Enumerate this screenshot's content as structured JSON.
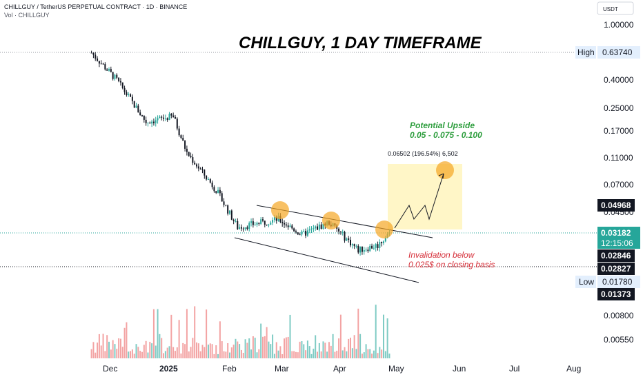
{
  "header": {
    "symbol_line": "CHILLGUY / TetherUS PERPETUAL CONTRACT · 1D · BINANCE",
    "volume_line": "Vol · CHILLGUY"
  },
  "currency_button": "USDT",
  "annotations": {
    "title": "CHILLGUY, 1 DAY TIMEFRAME",
    "upside_line1": "Potential Upside",
    "upside_line2": "0.05 - 0.075 - 0.100",
    "measure": "0.06502 (196.54%) 6,502",
    "invalidation_line1": "Invalidation below",
    "invalidation_line2": "0.025$ on closing basis"
  },
  "colors": {
    "up": "#26a69a",
    "down": "#131722",
    "vol_up": "#7fcbc4",
    "vol_down": "#f3a3a3",
    "highlight_circle": "#f5a623",
    "target_box": "#fff6c7",
    "last_price_badge": "#26a69a"
  },
  "chart_data": {
    "type": "candlestick",
    "title": "CHILLGUY, 1 DAY TIMEFRAME",
    "x_ticks": [
      "Dec",
      "2025",
      "Feb",
      "Mar",
      "Apr",
      "May",
      "Jun",
      "Jul",
      "Aug"
    ],
    "y_scale": "log",
    "y_ticks": [
      "1.00000",
      "0.40000",
      "0.25000",
      "0.17000",
      "0.11000",
      "0.07000",
      "0.04500",
      "0.00800",
      "0.00550"
    ],
    "price_badges": [
      {
        "label": "",
        "value": "0.04968",
        "kind": "dark"
      },
      {
        "label": "",
        "value": "0.03182",
        "sub": "12:15:06",
        "kind": "last"
      },
      {
        "label": "",
        "value": "0.02846",
        "kind": "dark"
      },
      {
        "label": "",
        "value": "0.02827",
        "kind": "dark"
      },
      {
        "label": "",
        "value": "0.01373",
        "kind": "dark"
      }
    ],
    "high": {
      "label": "High",
      "value": "0.63740"
    },
    "low": {
      "label": "Low",
      "value": "0.01780"
    },
    "key_points": [
      {
        "date": "2024-11-22",
        "price": 0.63
      },
      {
        "date": "2024-12-05",
        "price": 0.4
      },
      {
        "date": "2024-12-20",
        "price": 0.2
      },
      {
        "date": "2025-01-03",
        "price": 0.22
      },
      {
        "date": "2025-01-10",
        "price": 0.12
      },
      {
        "date": "2025-01-25",
        "price": 0.065
      },
      {
        "date": "2025-02-05",
        "price": 0.035
      },
      {
        "date": "2025-02-26",
        "price": 0.04
      },
      {
        "date": "2025-03-10",
        "price": 0.031
      },
      {
        "date": "2025-03-24",
        "price": 0.038
      },
      {
        "date": "2025-04-08",
        "price": 0.024
      },
      {
        "date": "2025-04-18",
        "price": 0.026
      },
      {
        "date": "2025-04-24",
        "price": 0.0318
      }
    ],
    "target_price": 0.095
  }
}
